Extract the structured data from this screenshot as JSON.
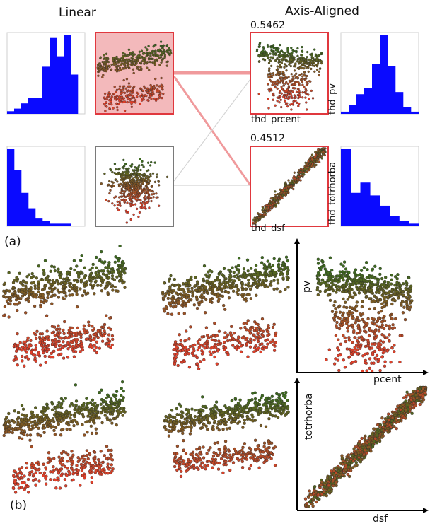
{
  "titles": {
    "linear": "Linear",
    "axis_aligned": "Axis-Aligned"
  },
  "correlations": {
    "top": "0.5462",
    "bottom": "0.4512"
  },
  "axis_labels": {
    "top_x": "thd_prcent",
    "top_y": "thd_pv",
    "bottom_x": "thd_dsf",
    "bottom_y": "thd_totrhorba"
  },
  "panel_labels": {
    "a": "(a)",
    "b": "(b)"
  },
  "big_axis_labels": {
    "top_x": "pcent",
    "top_y": "pv",
    "bottom_x": "dsf",
    "bottom_y": "totrhorba"
  },
  "colors": {
    "histogram_bar": "#0a0aff",
    "highlight_border": "#e0383e",
    "highlight_fill": "#f3b9bb",
    "neutral_border": "#7a7a7a",
    "link_strong": "#f09a9c",
    "link_weak": "#d4d4d4",
    "point_high": "#3d6b1f",
    "point_low": "#e0402a"
  },
  "chart_data": [
    {
      "type": "bar",
      "name": "histogram-top-left",
      "values": [
        1,
        2,
        4,
        6,
        6,
        18,
        29,
        22,
        30,
        15,
        0
      ]
    },
    {
      "type": "bar",
      "name": "histogram-bottom-left",
      "values": [
        30,
        22,
        13,
        7,
        3,
        2,
        1,
        1,
        1,
        0,
        0
      ]
    },
    {
      "type": "bar",
      "name": "histogram-top-right",
      "values": [
        1,
        4,
        9,
        12,
        23,
        36,
        22,
        10,
        3,
        1
      ]
    },
    {
      "type": "bar",
      "name": "histogram-bottom-right",
      "values": [
        30,
        13,
        17,
        12,
        8,
        4,
        2,
        1
      ]
    }
  ]
}
